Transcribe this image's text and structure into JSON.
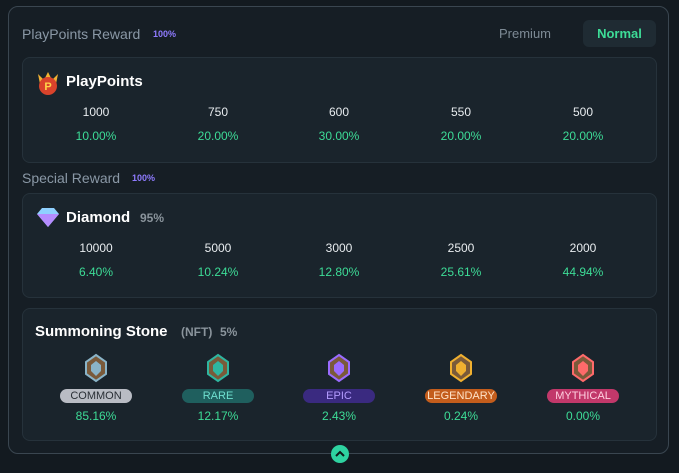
{
  "header": {
    "title": "PlayPoints Reward",
    "badge": "100%",
    "tabs": [
      "Premium",
      "Normal"
    ]
  },
  "playpoints": {
    "name": "PlayPoints",
    "items": [
      {
        "amount": "1000",
        "rate": "10.00%"
      },
      {
        "amount": "750",
        "rate": "20.00%"
      },
      {
        "amount": "600",
        "rate": "30.00%"
      },
      {
        "amount": "550",
        "rate": "20.00%"
      },
      {
        "amount": "500",
        "rate": "20.00%"
      }
    ]
  },
  "special": {
    "title": "Special Reward",
    "badge": "100%"
  },
  "diamond": {
    "name": "Diamond",
    "share": "95%",
    "items": [
      {
        "amount": "10000",
        "rate": "6.40%"
      },
      {
        "amount": "5000",
        "rate": "10.24%"
      },
      {
        "amount": "3000",
        "rate": "12.80%"
      },
      {
        "amount": "2500",
        "rate": "25.61%"
      },
      {
        "amount": "2000",
        "rate": "44.94%"
      }
    ]
  },
  "stones": {
    "name": "Summoning Stone",
    "tag": "(NFT)",
    "share": "5%",
    "items": [
      {
        "rarity": "COMMON",
        "rate": "85.16%"
      },
      {
        "rarity": "RARE",
        "rate": "12.17%"
      },
      {
        "rarity": "EPIC",
        "rate": "2.43%"
      },
      {
        "rarity": "LEGENDARY",
        "rate": "0.24%"
      },
      {
        "rarity": "MYTHICAL",
        "rate": "0.00%"
      }
    ]
  }
}
